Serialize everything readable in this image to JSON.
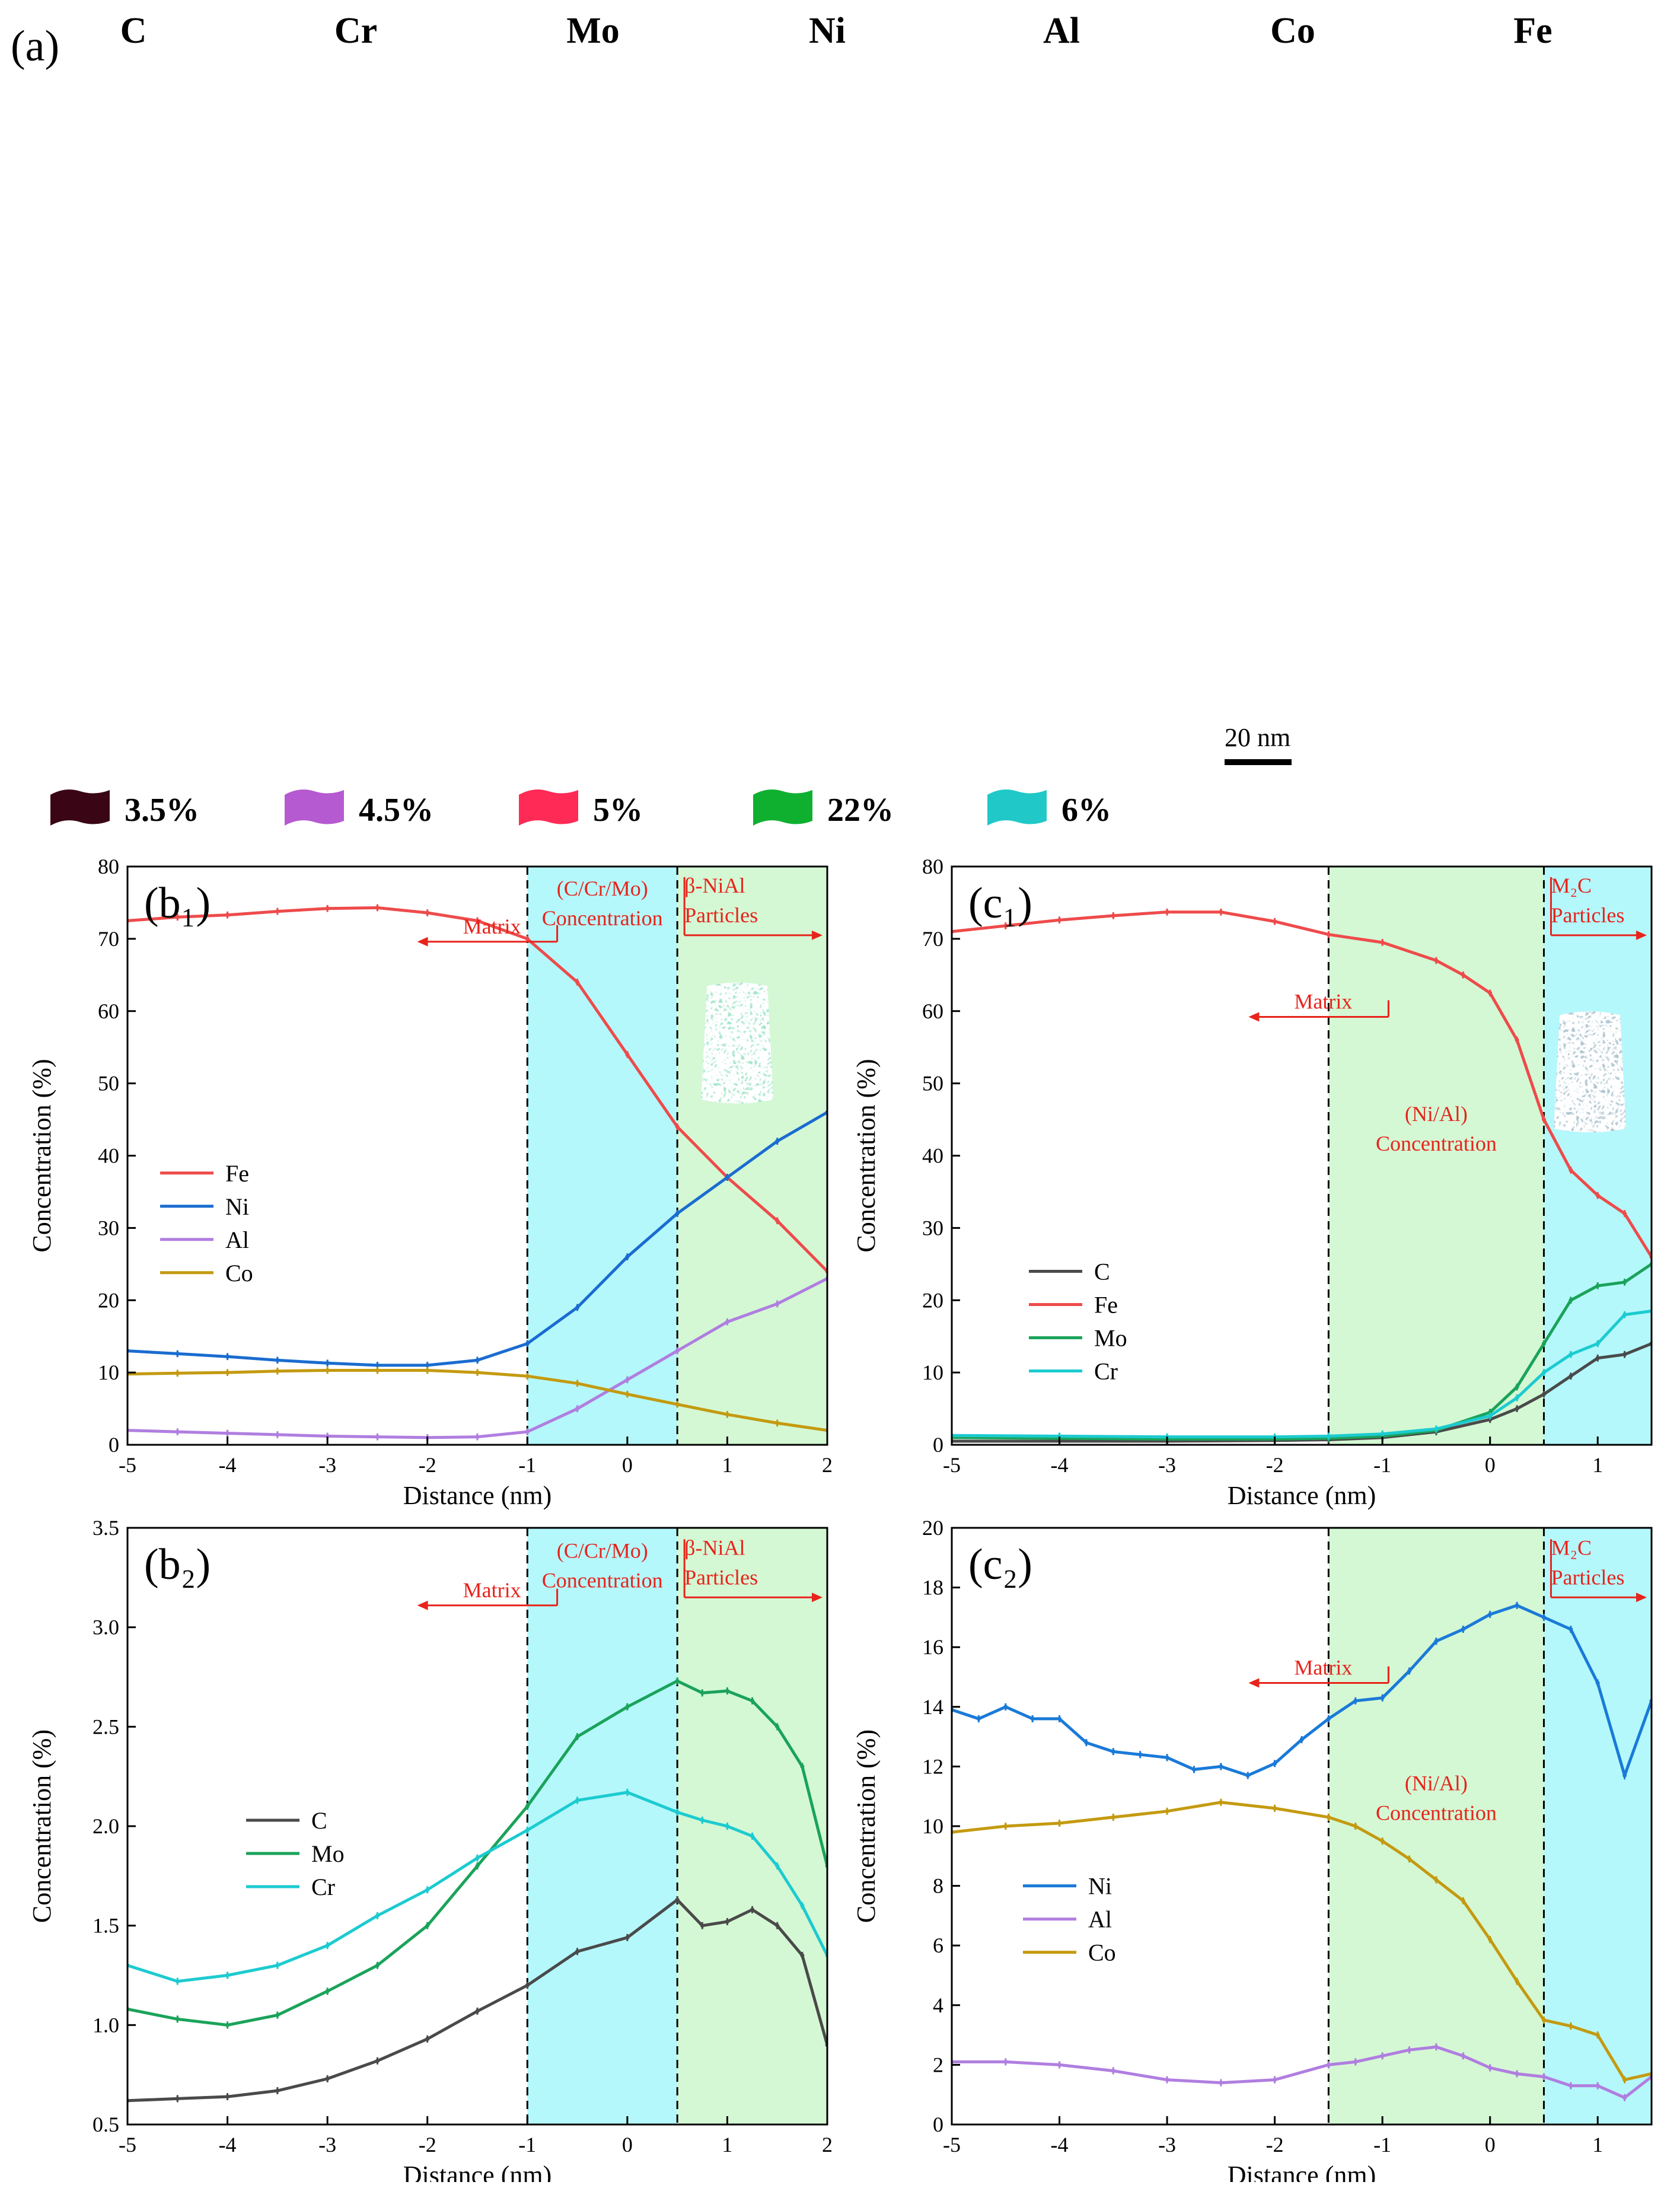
{
  "figure_label": "(a)",
  "elements": [
    {
      "symbol": "C",
      "color": "#333333"
    },
    {
      "symbol": "Cr",
      "color": "#f06fd6"
    },
    {
      "symbol": "Mo",
      "color": "#ee3540"
    },
    {
      "symbol": "Ni",
      "color": "#22b84a"
    },
    {
      "symbol": "Al",
      "color": "#1dd6e6"
    },
    {
      "symbol": "Co",
      "color": "#4a4ad8"
    },
    {
      "symbol": "Fe",
      "color": "#e050e0"
    }
  ],
  "isosurfaces": [
    {
      "label": "3.5%",
      "color": "#111111",
      "swatch": "#3a0515"
    },
    {
      "label": "4.5%",
      "color": "#cc3aa8",
      "swatch": "#b55ad0"
    },
    {
      "label": "5%",
      "color": "#cc1430",
      "swatch": "#ff2a55"
    },
    {
      "label": "22%",
      "color": "#139030",
      "swatch": "#0fb030"
    },
    {
      "label": "6%",
      "color": "#26b0b4",
      "swatch": "#20c8c8"
    }
  ],
  "scale_bar": "20 nm",
  "chart_data": [
    {
      "id": "b1",
      "type": "line",
      "panel_label": "(b₁)",
      "xlabel": "Distance (nm)",
      "ylabel": "Concentration (%)",
      "xlim": [
        -5,
        2
      ],
      "ylim": [
        0,
        80
      ],
      "xticks": [
        -5,
        -4,
        -3,
        -2,
        -1,
        0,
        1,
        2
      ],
      "yticks": [
        0,
        10,
        20,
        30,
        40,
        50,
        60,
        70,
        80
      ],
      "regions": [
        {
          "from": -1,
          "to": 0.5,
          "color": "#b4f8fc"
        },
        {
          "from": 0.5,
          "to": 2,
          "color": "#d4f8d4"
        }
      ],
      "dividers": [
        -1,
        0.5
      ],
      "annotations": {
        "matrix": "Matrix",
        "region1": [
          "(C/Cr/Mo)",
          "Concentration"
        ],
        "region2": [
          "β-NiAl",
          "Particles"
        ]
      },
      "legend": "middle-left",
      "series": [
        {
          "name": "Fe",
          "color": "#ee4b4b",
          "x": [
            -5,
            -4.5,
            -4,
            -3.5,
            -3,
            -2.5,
            -2,
            -1.5,
            -1,
            -0.5,
            0,
            0.5,
            1,
            1.5,
            2
          ],
          "y": [
            72.5,
            73,
            73.3,
            73.8,
            74.2,
            74.3,
            73.6,
            72.5,
            70,
            64,
            54,
            44,
            37,
            31,
            24
          ]
        },
        {
          "name": "Ni",
          "color": "#1a6cd0",
          "x": [
            -5,
            -4.5,
            -4,
            -3.5,
            -3,
            -2.5,
            -2,
            -1.5,
            -1,
            -0.5,
            0,
            0.5,
            1,
            1.5,
            2
          ],
          "y": [
            13,
            12.6,
            12.2,
            11.7,
            11.3,
            11,
            11,
            11.7,
            14,
            19,
            26,
            32,
            37,
            42,
            46
          ]
        },
        {
          "name": "Al",
          "color": "#b07ee0",
          "x": [
            -5,
            -4.5,
            -4,
            -3.5,
            -3,
            -2.5,
            -2,
            -1.5,
            -1,
            -0.5,
            0,
            0.5,
            1,
            1.5,
            2
          ],
          "y": [
            2,
            1.8,
            1.6,
            1.4,
            1.2,
            1.1,
            1,
            1.1,
            1.8,
            5,
            9,
            13,
            17,
            19.5,
            23
          ]
        },
        {
          "name": "Co",
          "color": "#c49a10",
          "x": [
            -5,
            -4.5,
            -4,
            -3.5,
            -3,
            -2.5,
            -2,
            -1.5,
            -1,
            -0.5,
            0,
            0.5,
            1,
            1.5,
            2
          ],
          "y": [
            9.8,
            9.9,
            10,
            10.2,
            10.3,
            10.3,
            10.3,
            10,
            9.5,
            8.5,
            7,
            5.6,
            4.2,
            3,
            2
          ]
        }
      ]
    },
    {
      "id": "b2",
      "type": "line",
      "panel_label": "(b₂)",
      "xlabel": "Distance (nm)",
      "ylabel": "Concentration (%)",
      "xlim": [
        -5,
        2
      ],
      "ylim": [
        0.5,
        3.5
      ],
      "xticks": [
        -5,
        -4,
        -3,
        -2,
        -1,
        0,
        1,
        2
      ],
      "yticks": [
        0.5,
        1.0,
        1.5,
        2.0,
        2.5,
        3.0,
        3.5
      ],
      "regions": [
        {
          "from": -1,
          "to": 0.5,
          "color": "#b4f8fc"
        },
        {
          "from": 0.5,
          "to": 2,
          "color": "#d4f8d4"
        }
      ],
      "dividers": [
        -1,
        0.5
      ],
      "annotations": {
        "matrix": "Matrix",
        "region1": [
          "(C/Cr/Mo)",
          "Concentration"
        ],
        "region2": [
          "β-NiAl",
          "Particles"
        ]
      },
      "legend": "middle-left",
      "series": [
        {
          "name": "C",
          "color": "#4a4a4a",
          "x": [
            -5,
            -4.5,
            -4,
            -3.5,
            -3,
            -2.5,
            -2,
            -1.5,
            -1,
            -0.5,
            0,
            0.5,
            0.75,
            1,
            1.25,
            1.5,
            1.75,
            2
          ],
          "y": [
            0.62,
            0.63,
            0.64,
            0.67,
            0.73,
            0.82,
            0.93,
            1.07,
            1.2,
            1.37,
            1.44,
            1.63,
            1.5,
            1.52,
            1.58,
            1.5,
            1.35,
            0.9
          ]
        },
        {
          "name": "Mo",
          "color": "#1aa35a",
          "x": [
            -5,
            -4.5,
            -4,
            -3.5,
            -3,
            -2.5,
            -2,
            -1.5,
            -1,
            -0.5,
            0,
            0.5,
            0.75,
            1,
            1.25,
            1.5,
            1.75,
            2
          ],
          "y": [
            1.08,
            1.03,
            1.0,
            1.05,
            1.17,
            1.3,
            1.5,
            1.8,
            2.1,
            2.45,
            2.6,
            2.73,
            2.67,
            2.68,
            2.63,
            2.5,
            2.3,
            1.8
          ]
        },
        {
          "name": "Cr",
          "color": "#1ccbd0",
          "x": [
            -5,
            -4.5,
            -4,
            -3.5,
            -3,
            -2.5,
            -2,
            -1.5,
            -1,
            -0.5,
            0,
            0.5,
            0.75,
            1,
            1.25,
            1.5,
            1.75,
            2
          ],
          "y": [
            1.3,
            1.22,
            1.25,
            1.3,
            1.4,
            1.55,
            1.68,
            1.84,
            1.98,
            2.13,
            2.17,
            2.07,
            2.03,
            2.0,
            1.95,
            1.8,
            1.6,
            1.35
          ]
        }
      ]
    },
    {
      "id": "c1",
      "type": "line",
      "panel_label": "(c₁)",
      "xlabel": "Distance (nm)",
      "ylabel": "Concentration (%)",
      "xlim": [
        -5,
        1.5
      ],
      "ylim": [
        0,
        80
      ],
      "xticks": [
        -5,
        -4,
        -3,
        -2,
        -1,
        0,
        1
      ],
      "yticks": [
        0,
        10,
        20,
        30,
        40,
        50,
        60,
        70,
        80
      ],
      "regions": [
        {
          "from": -1.5,
          "to": 0.5,
          "color": "#d4f8d4"
        },
        {
          "from": 0.5,
          "to": 1.5,
          "color": "#b4f8fc"
        }
      ],
      "dividers": [
        -1.5,
        0.5
      ],
      "annotations": {
        "matrix": "Matrix",
        "region1": [
          "(Ni/Al)",
          "Concentration"
        ],
        "region2": [
          "M₂C",
          "Particles"
        ]
      },
      "legend": "lower-left",
      "series": [
        {
          "name": "C",
          "color": "#4a4a4a",
          "x": [
            -5,
            -4,
            -3,
            -2,
            -1.5,
            -1,
            -0.5,
            0,
            0.25,
            0.5,
            0.75,
            1,
            1.25,
            1.5
          ],
          "y": [
            0.5,
            0.5,
            0.5,
            0.6,
            0.7,
            1,
            1.8,
            3.5,
            5,
            7,
            9.5,
            12,
            12.5,
            14
          ]
        },
        {
          "name": "Fe",
          "color": "#ee4b4b",
          "x": [
            -5,
            -4.5,
            -4,
            -3.5,
            -3,
            -2.5,
            -2,
            -1.5,
            -1,
            -0.5,
            -0.25,
            0,
            0.25,
            0.5,
            0.75,
            1,
            1.25,
            1.5
          ],
          "y": [
            71,
            71.8,
            72.6,
            73.2,
            73.7,
            73.7,
            72.4,
            70.6,
            69.5,
            67,
            65,
            62.5,
            56,
            45,
            38,
            34.5,
            32,
            26
          ]
        },
        {
          "name": "Mo",
          "color": "#1aa35a",
          "x": [
            -5,
            -4,
            -3,
            -2,
            -1.5,
            -1,
            -0.5,
            0,
            0.25,
            0.5,
            0.75,
            1,
            1.25,
            1.5
          ],
          "y": [
            1,
            0.9,
            0.8,
            0.8,
            0.9,
            1.2,
            2,
            4.5,
            8,
            14,
            20,
            22,
            22.5,
            25
          ]
        },
        {
          "name": "Cr",
          "color": "#1ccbd0",
          "x": [
            -5,
            -4,
            -3,
            -2,
            -1.5,
            -1,
            -0.5,
            0,
            0.25,
            0.5,
            0.75,
            1,
            1.25,
            1.5
          ],
          "y": [
            1.3,
            1.2,
            1.1,
            1.1,
            1.2,
            1.5,
            2.2,
            4,
            6.5,
            10,
            12.5,
            14,
            18,
            18.5
          ]
        }
      ]
    },
    {
      "id": "c2",
      "type": "line",
      "panel_label": "(c₂)",
      "xlabel": "Distance (nm)",
      "ylabel": "Concentration (%)",
      "xlim": [
        -5,
        1.5
      ],
      "ylim": [
        0,
        20
      ],
      "xticks": [
        -5,
        -4,
        -3,
        -2,
        -1,
        0,
        1
      ],
      "yticks": [
        0,
        2,
        4,
        6,
        8,
        10,
        12,
        14,
        16,
        18,
        20
      ],
      "regions": [
        {
          "from": -1.5,
          "to": 0.5,
          "color": "#d4f8d4"
        },
        {
          "from": 0.5,
          "to": 1.5,
          "color": "#b4f8fc"
        }
      ],
      "dividers": [
        -1.5,
        0.5
      ],
      "annotations": {
        "matrix": "Matrix",
        "region1": [
          "(Ni/Al)",
          "Concentration"
        ],
        "region2": [
          "M₂C",
          "Particles"
        ]
      },
      "legend": "lower-left",
      "series": [
        {
          "name": "Ni",
          "color": "#1a7ad8",
          "x": [
            -5,
            -4.75,
            -4.5,
            -4.25,
            -4,
            -3.75,
            -3.5,
            -3.25,
            -3,
            -2.75,
            -2.5,
            -2.25,
            -2,
            -1.75,
            -1.5,
            -1.25,
            -1,
            -0.75,
            -0.5,
            -0.25,
            0,
            0.25,
            0.5,
            0.75,
            1,
            1.25,
            1.5
          ],
          "y": [
            13.9,
            13.6,
            14,
            13.6,
            13.6,
            12.8,
            12.5,
            12.4,
            12.3,
            11.9,
            12,
            11.7,
            12.1,
            12.9,
            13.6,
            14.2,
            14.3,
            15.2,
            16.2,
            16.6,
            17.1,
            17.4,
            17.0,
            16.6,
            14.8,
            11.7,
            14.2
          ]
        },
        {
          "name": "Al",
          "color": "#b07ee0",
          "x": [
            -5,
            -4.5,
            -4,
            -3.5,
            -3,
            -2.5,
            -2,
            -1.5,
            -1.25,
            -1,
            -0.75,
            -0.5,
            -0.25,
            0,
            0.25,
            0.5,
            0.75,
            1,
            1.25,
            1.5
          ],
          "y": [
            2.1,
            2.1,
            2.0,
            1.8,
            1.5,
            1.4,
            1.5,
            2.0,
            2.1,
            2.3,
            2.5,
            2.6,
            2.3,
            1.9,
            1.7,
            1.6,
            1.3,
            1.3,
            0.9,
            1.6
          ]
        },
        {
          "name": "Co",
          "color": "#c49a10",
          "x": [
            -5,
            -4.5,
            -4,
            -3.5,
            -3,
            -2.5,
            -2,
            -1.5,
            -1.25,
            -1,
            -0.75,
            -0.5,
            -0.25,
            0,
            0.25,
            0.5,
            0.75,
            1,
            1.25,
            1.5
          ],
          "y": [
            9.8,
            10,
            10.1,
            10.3,
            10.5,
            10.8,
            10.6,
            10.3,
            10.0,
            9.5,
            8.9,
            8.2,
            7.5,
            6.2,
            4.8,
            3.5,
            3.3,
            3.0,
            1.5,
            1.7
          ]
        }
      ]
    }
  ]
}
